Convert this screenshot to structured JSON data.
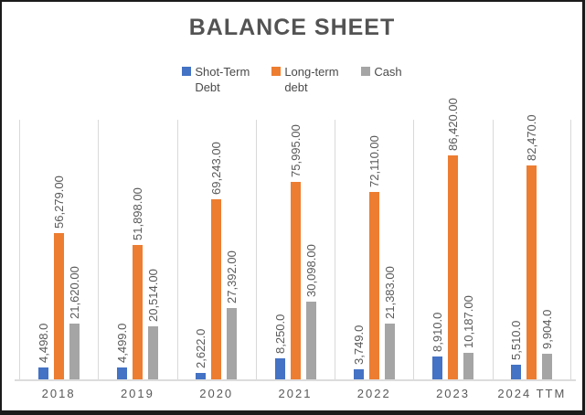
{
  "chart_data": {
    "type": "bar",
    "title": "BALANCE SHEET",
    "categories": [
      "2018",
      "2019",
      "2020",
      "2021",
      "2022",
      "2023",
      "2024 TTM"
    ],
    "series": [
      {
        "name": "Shot-Term Debt",
        "color": "#4472C4",
        "values": [
          4498.0,
          4499.0,
          2622.0,
          8250.0,
          3749.0,
          8910.0,
          5510.0
        ],
        "labels": [
          "4,498.0",
          "4,499.0",
          "2,622.0",
          "8,250.0",
          "3,749.0",
          "8,910.0",
          "5,510.0"
        ]
      },
      {
        "name": "Long-term debt",
        "color": "#ED7D31",
        "values": [
          56279,
          51898,
          69243,
          75995,
          72110,
          86420,
          82470
        ],
        "labels": [
          "56,279.00",
          "51,898.00",
          "69,243.00",
          "75,995.00",
          "72,110.00",
          "86,420.00",
          "82,470.0"
        ]
      },
      {
        "name": "Cash",
        "color": "#A5A5A5",
        "values": [
          21620,
          20514,
          27392,
          30098,
          21383,
          10187,
          9904
        ],
        "labels": [
          "21,620.00",
          "20,514.00",
          "27,392.00",
          "30,098.00",
          "21,383.00",
          "10,187.00",
          "9,904.0"
        ]
      }
    ],
    "ylim": [
      0,
      100000
    ],
    "legend_position": "top",
    "grid": "vertical category separators",
    "gridline_color": "#D9D9D9",
    "label_color": "#595959",
    "title_color": "#535353"
  }
}
